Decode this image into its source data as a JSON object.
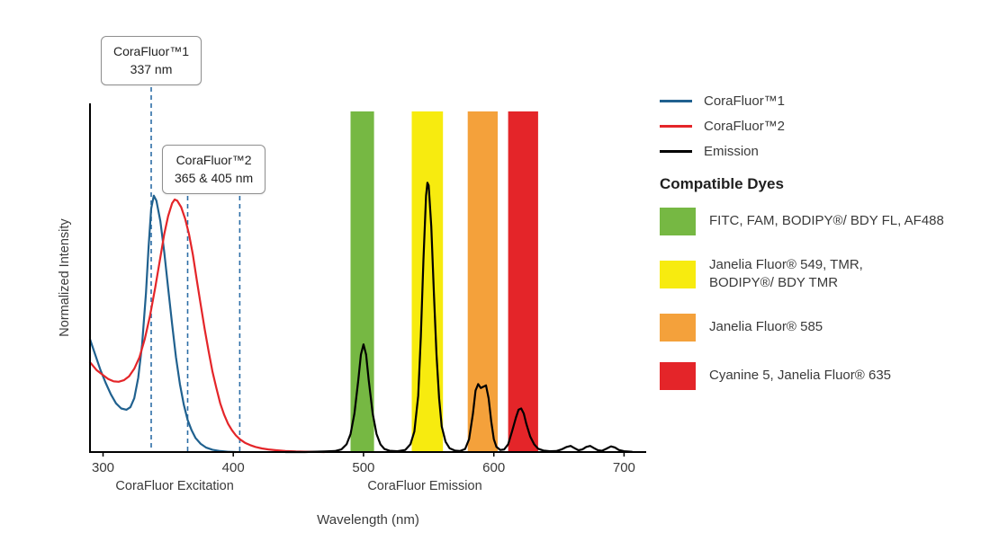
{
  "legend": {
    "series": [
      {
        "name": "CoraFluor™1",
        "color": "#20618f"
      },
      {
        "name": "CoraFluor™2",
        "color": "#e42529"
      },
      {
        "name": "Emission",
        "color": "#000000"
      }
    ],
    "dyes_heading": "Compatible Dyes",
    "dyes": [
      {
        "color": "#76b843",
        "label": "FITC, FAM, BODIPY®/ BDY FL, AF488"
      },
      {
        "color": "#f7eb0f",
        "label": "Janelia Fluor® 549, TMR,\nBODIPY®/ BDY TMR"
      },
      {
        "color": "#f4a13b",
        "label": "Janelia Fluor® 585"
      },
      {
        "color": "#e42529",
        "label": "Cyanine 5, Janelia Fluor® 635"
      }
    ]
  },
  "chart_data": {
    "type": "line",
    "title": "",
    "xlabel": "Wavelength (nm)",
    "ylabel": "Normalized Intensity",
    "x_axis": {
      "min": 290,
      "max": 717,
      "ticks": [
        300,
        400,
        500,
        600,
        700
      ]
    },
    "y_axis": {
      "min": 0,
      "max": 1.36
    },
    "grid": false,
    "legend_position": "right",
    "section_labels": [
      {
        "text": "CoraFluor Excitation",
        "x_nm": 355
      },
      {
        "text": "CoraFluor Emission",
        "x_nm": 547
      }
    ],
    "callouts": [
      {
        "title": "CoraFluor™1",
        "subtitle": "337 nm",
        "lines_nm": [
          337
        ]
      },
      {
        "title": "CoraFluor™2",
        "subtitle": "365 & 405 nm",
        "lines_nm": [
          365,
          405
        ]
      }
    ],
    "dashed_line_color": "#2d6ea6",
    "filter_bands": [
      {
        "x0_nm": 490,
        "x1_nm": 508,
        "color": "#76b843"
      },
      {
        "x0_nm": 537,
        "x1_nm": 561,
        "color": "#f7eb0f"
      },
      {
        "x0_nm": 580,
        "x1_nm": 603,
        "color": "#f4a13b"
      },
      {
        "x0_nm": 611,
        "x1_nm": 634,
        "color": "#e42529"
      }
    ],
    "series": [
      {
        "name": "CoraFluor™1",
        "color": "#20618f",
        "points": [
          [
            290,
            0.44
          ],
          [
            294,
            0.38
          ],
          [
            298,
            0.32
          ],
          [
            302,
            0.27
          ],
          [
            306,
            0.225
          ],
          [
            310,
            0.19
          ],
          [
            314,
            0.17
          ],
          [
            318,
            0.165
          ],
          [
            321,
            0.175
          ],
          [
            324,
            0.21
          ],
          [
            327,
            0.29
          ],
          [
            330,
            0.42
          ],
          [
            333,
            0.62
          ],
          [
            335,
            0.8
          ],
          [
            337,
            0.95
          ],
          [
            339,
            1.0
          ],
          [
            341,
            0.98
          ],
          [
            344,
            0.9
          ],
          [
            347,
            0.78
          ],
          [
            350,
            0.64
          ],
          [
            353,
            0.5
          ],
          [
            356,
            0.37
          ],
          [
            359,
            0.265
          ],
          [
            362,
            0.185
          ],
          [
            365,
            0.125
          ],
          [
            368,
            0.085
          ],
          [
            371,
            0.055
          ],
          [
            375,
            0.032
          ],
          [
            379,
            0.018
          ],
          [
            384,
            0.009
          ],
          [
            390,
            0.004
          ],
          [
            396,
            0.001
          ],
          [
            402,
            0
          ]
        ]
      },
      {
        "name": "CoraFluor™2",
        "color": "#e42529",
        "points": [
          [
            290,
            0.35
          ],
          [
            295,
            0.32
          ],
          [
            300,
            0.3
          ],
          [
            304,
            0.285
          ],
          [
            308,
            0.276
          ],
          [
            312,
            0.274
          ],
          [
            316,
            0.28
          ],
          [
            320,
            0.295
          ],
          [
            324,
            0.325
          ],
          [
            328,
            0.37
          ],
          [
            332,
            0.44
          ],
          [
            336,
            0.53
          ],
          [
            340,
            0.64
          ],
          [
            344,
            0.76
          ],
          [
            347,
            0.85
          ],
          [
            350,
            0.92
          ],
          [
            353,
            0.97
          ],
          [
            355,
            0.985
          ],
          [
            357,
            0.98
          ],
          [
            360,
            0.955
          ],
          [
            363,
            0.91
          ],
          [
            366,
            0.85
          ],
          [
            369,
            0.77
          ],
          [
            372,
            0.67
          ],
          [
            375,
            0.575
          ],
          [
            378,
            0.48
          ],
          [
            381,
            0.395
          ],
          [
            384,
            0.315
          ],
          [
            387,
            0.25
          ],
          [
            390,
            0.19
          ],
          [
            393,
            0.145
          ],
          [
            396,
            0.11
          ],
          [
            399,
            0.085
          ],
          [
            402,
            0.065
          ],
          [
            405,
            0.05
          ],
          [
            409,
            0.036
          ],
          [
            413,
            0.027
          ],
          [
            417,
            0.02
          ],
          [
            422,
            0.014
          ],
          [
            427,
            0.01
          ],
          [
            433,
            0.007
          ],
          [
            440,
            0.004
          ],
          [
            448,
            0.002
          ],
          [
            458,
            0.001
          ],
          [
            470,
            0
          ]
        ]
      },
      {
        "name": "Emission",
        "color": "#000000",
        "points": [
          [
            440,
            0
          ],
          [
            455,
            0
          ],
          [
            470,
            0.002
          ],
          [
            478,
            0.004
          ],
          [
            483,
            0.01
          ],
          [
            487,
            0.03
          ],
          [
            490,
            0.07
          ],
          [
            493,
            0.15
          ],
          [
            496,
            0.28
          ],
          [
            498,
            0.38
          ],
          [
            500,
            0.42
          ],
          [
            502,
            0.38
          ],
          [
            504,
            0.28
          ],
          [
            507,
            0.15
          ],
          [
            510,
            0.07
          ],
          [
            513,
            0.03
          ],
          [
            516,
            0.012
          ],
          [
            520,
            0.005
          ],
          [
            526,
            0.003
          ],
          [
            532,
            0.008
          ],
          [
            536,
            0.03
          ],
          [
            539,
            0.08
          ],
          [
            542,
            0.22
          ],
          [
            544,
            0.45
          ],
          [
            546,
            0.75
          ],
          [
            548,
            1.0
          ],
          [
            549,
            1.05
          ],
          [
            550,
            1.04
          ],
          [
            552,
            0.88
          ],
          [
            554,
            0.62
          ],
          [
            556,
            0.38
          ],
          [
            558,
            0.21
          ],
          [
            560,
            0.1
          ],
          [
            563,
            0.04
          ],
          [
            566,
            0.015
          ],
          [
            570,
            0.006
          ],
          [
            574,
            0.004
          ],
          [
            578,
            0.012
          ],
          [
            581,
            0.05
          ],
          [
            584,
            0.15
          ],
          [
            586,
            0.24
          ],
          [
            588,
            0.265
          ],
          [
            590,
            0.25
          ],
          [
            592,
            0.255
          ],
          [
            594,
            0.26
          ],
          [
            596,
            0.21
          ],
          [
            598,
            0.12
          ],
          [
            600,
            0.05
          ],
          [
            602,
            0.02
          ],
          [
            605,
            0.008
          ],
          [
            608,
            0.01
          ],
          [
            611,
            0.03
          ],
          [
            614,
            0.08
          ],
          [
            617,
            0.135
          ],
          [
            619,
            0.165
          ],
          [
            621,
            0.17
          ],
          [
            623,
            0.15
          ],
          [
            625,
            0.11
          ],
          [
            628,
            0.06
          ],
          [
            631,
            0.03
          ],
          [
            634,
            0.013
          ],
          [
            638,
            0.006
          ],
          [
            643,
            0.003
          ],
          [
            648,
            0.004
          ],
          [
            652,
            0.01
          ],
          [
            656,
            0.02
          ],
          [
            659,
            0.024
          ],
          [
            662,
            0.015
          ],
          [
            665,
            0.007
          ],
          [
            668,
            0.01
          ],
          [
            671,
            0.02
          ],
          [
            674,
            0.024
          ],
          [
            677,
            0.015
          ],
          [
            680,
            0.007
          ],
          [
            683,
            0.005
          ],
          [
            686,
            0.012
          ],
          [
            690,
            0.022
          ],
          [
            693,
            0.018
          ],
          [
            696,
            0.008
          ],
          [
            700,
            0.003
          ],
          [
            706,
            0.001
          ]
        ]
      }
    ]
  }
}
